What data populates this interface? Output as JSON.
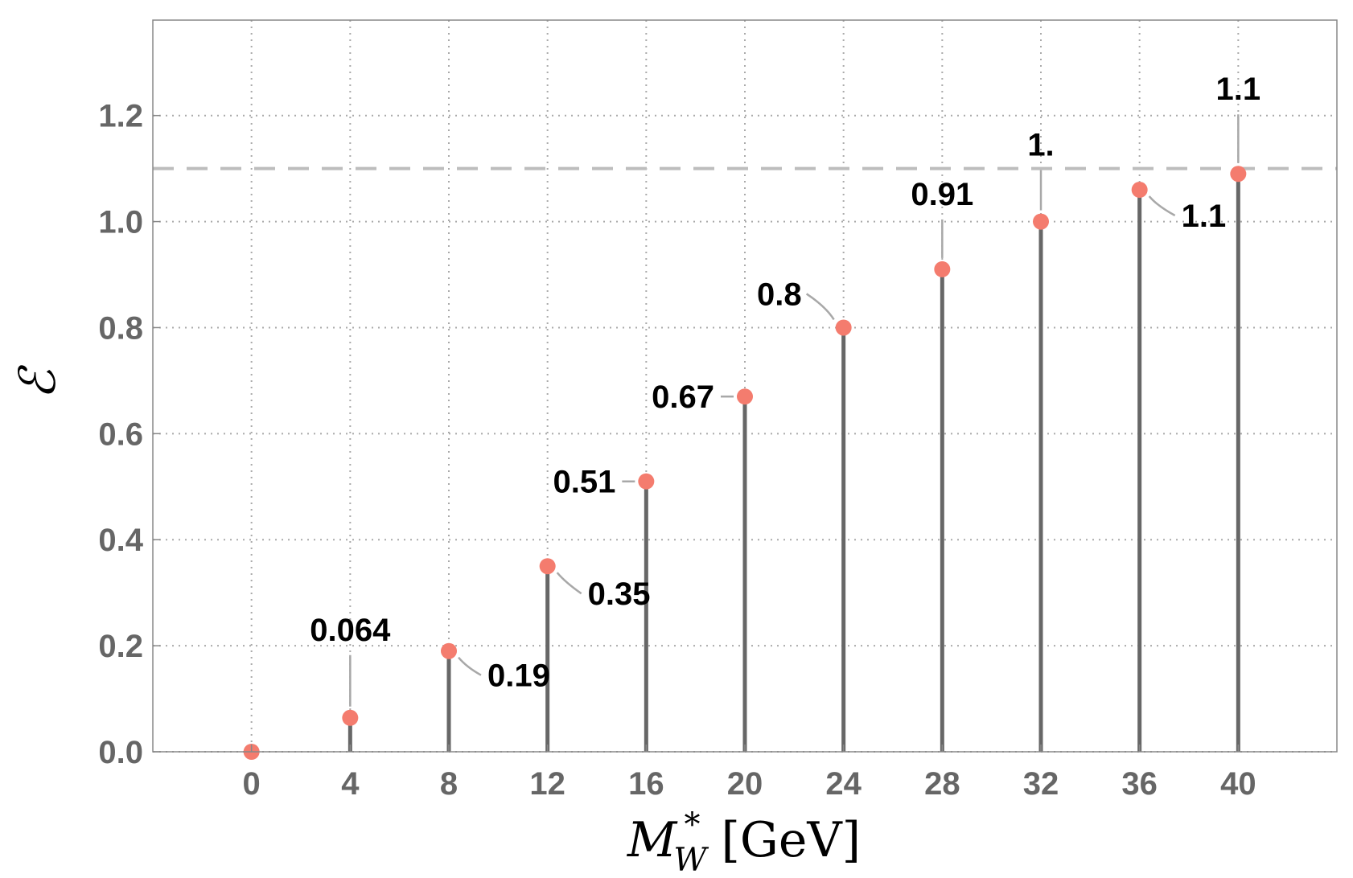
{
  "chart_data": {
    "type": "stem",
    "xlabel": {
      "main": "M",
      "sup": "*",
      "sub": "W",
      "unit": "[GeV]"
    },
    "ylabel": "ℰ",
    "x": [
      0,
      4,
      8,
      12,
      16,
      20,
      24,
      28,
      32,
      36,
      40
    ],
    "values": [
      0.0,
      0.064,
      0.19,
      0.35,
      0.51,
      0.67,
      0.8,
      0.91,
      1.0,
      1.06,
      1.09
    ],
    "point_labels": [
      "",
      "0.064",
      "0.19",
      "0.35",
      "0.51",
      "0.67",
      "0.8",
      "0.91",
      "1.",
      "1.1",
      "1.1"
    ],
    "xticks": [
      0,
      4,
      8,
      12,
      16,
      20,
      24,
      28,
      32,
      36,
      40
    ],
    "xtick_labels": [
      "0",
      "4",
      "8",
      "12",
      "16",
      "20",
      "24",
      "28",
      "32",
      "36",
      "40"
    ],
    "yticks": [
      0.0,
      0.2,
      0.4,
      0.6,
      0.8,
      1.0,
      1.2
    ],
    "ytick_labels": [
      "0.0",
      "0.2",
      "0.4",
      "0.6",
      "0.8",
      "1.0",
      "1.2"
    ],
    "xlim": [
      -4,
      44
    ],
    "ylim": [
      0,
      1.38
    ],
    "reference_line_y": 1.1,
    "grid": true,
    "colors": {
      "marker": "#f47c6e",
      "stem": "#676767",
      "grid": "#aaaaaa",
      "refline": "#bdbdbd",
      "axis": "#888888"
    }
  }
}
